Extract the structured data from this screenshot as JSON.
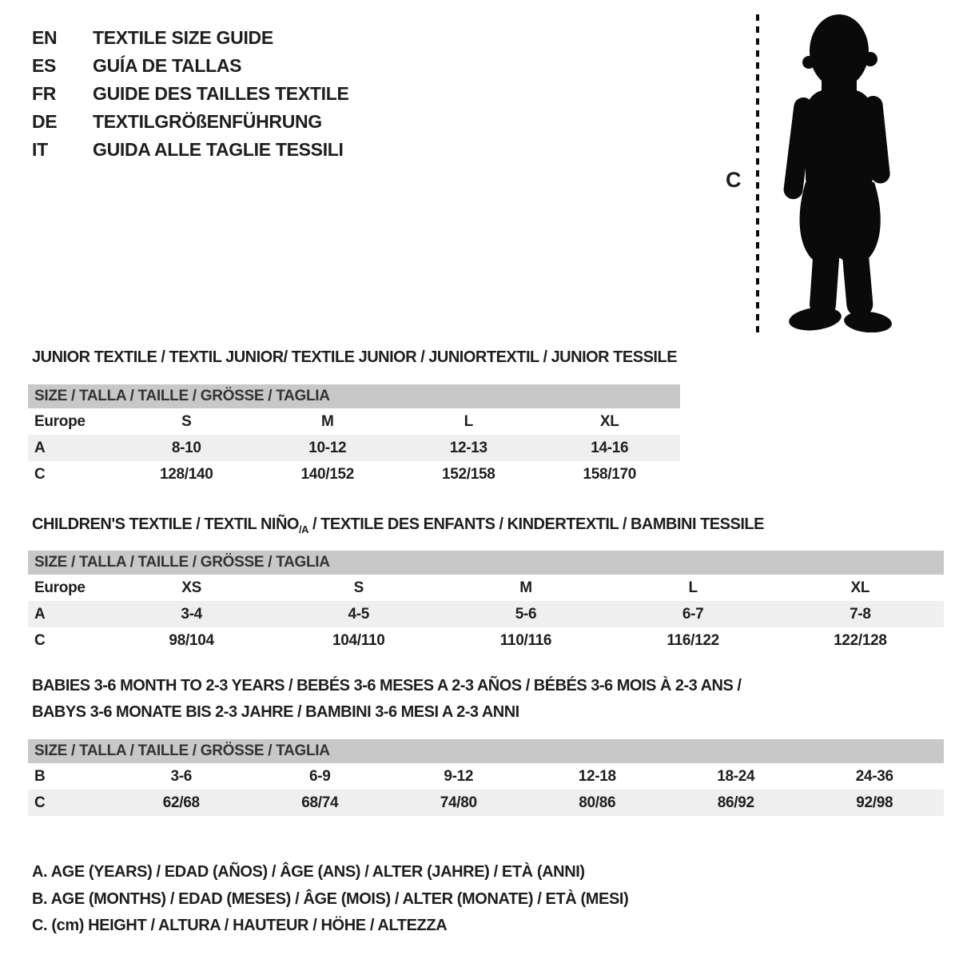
{
  "colors": {
    "background": "#ffffff",
    "text": "#1e1e1e",
    "table_header_bg": "#c8c8c8",
    "table_header_text": "#333333",
    "row_shaded_bg": "#efefef",
    "silhouette": "#0a0a0a"
  },
  "language_header": {
    "items": [
      {
        "code": "EN",
        "title": "TEXTILE SIZE GUIDE"
      },
      {
        "code": "ES",
        "title": "GUÍA DE TALLAS"
      },
      {
        "code": "FR",
        "title": "GUIDE DES TAILLES TEXTILE"
      },
      {
        "code": "DE",
        "title": "TEXTILGRÖßENFÜHRUNG"
      },
      {
        "code": "IT",
        "title": "GUIDA ALLE TAGLIE TESSILI"
      }
    ]
  },
  "figure": {
    "icon": "toddler-silhouette",
    "measure_label": "C"
  },
  "junior": {
    "title": "JUNIOR TEXTILE / TEXTIL JUNIOR/ TEXTILE JUNIOR / JUNIORTEXTIL / JUNIOR TESSILE",
    "table": {
      "header": "SIZE / TALLA / TAILLE / GRÖSSE / TAGLIA",
      "rows": [
        {
          "label": "Europe",
          "cells": [
            "S",
            "M",
            "L",
            "XL"
          ],
          "shaded": false
        },
        {
          "label": "A",
          "cells": [
            "8-10",
            "10-12",
            "12-13",
            "14-16"
          ],
          "shaded": true
        },
        {
          "label": "C",
          "cells": [
            "128/140",
            "140/152",
            "152/158",
            "158/170"
          ],
          "shaded": false
        }
      ]
    }
  },
  "children": {
    "title_pre": "CHILDREN'S TEXTILE / TEXTIL NIÑO",
    "title_sub": "/A",
    "title_post": " / TEXTILE DES ENFANTS / KINDERTEXTIL / BAMBINI TESSILE",
    "table": {
      "header": "SIZE / TALLA / TAILLE / GRÖSSE / TAGLIA",
      "rows": [
        {
          "label": "Europe",
          "cells": [
            "XS",
            "S",
            "M",
            "L",
            "XL"
          ],
          "shaded": false
        },
        {
          "label": "A",
          "cells": [
            "3-4",
            "4-5",
            "5-6",
            "6-7",
            "7-8"
          ],
          "shaded": true
        },
        {
          "label": "C",
          "cells": [
            "98/104",
            "104/110",
            "110/116",
            "116/122",
            "122/128"
          ],
          "shaded": false
        }
      ]
    }
  },
  "babies": {
    "title_line1": "BABIES 3-6 MONTH TO 2-3 YEARS / BEBÉS 3-6 MESES A 2-3 AÑOS / BÉBÉS 3-6 MOIS À 2-3 ANS /",
    "title_line2": "BABYS 3-6 MONATE BIS 2-3 JAHRE / BAMBINI 3-6 MESI A 2-3 ANNI",
    "table": {
      "header": "SIZE / TALLA / TAILLE / GRÖSSE / TAGLIA",
      "rows": [
        {
          "label": "B",
          "cells": [
            "3-6",
            "6-9",
            "9-12",
            "12-18",
            "18-24",
            "24-36"
          ],
          "shaded": false
        },
        {
          "label": "C",
          "cells": [
            "62/68",
            "68/74",
            "74/80",
            "80/86",
            "86/92",
            "92/98"
          ],
          "shaded": true
        }
      ]
    }
  },
  "legend": {
    "line_a": "A. AGE (YEARS) / EDAD (AÑOS) / ÂGE (ANS) / ALTER (JAHRE) / ETÀ (ANNI)",
    "line_b": "B. AGE (MONTHS) / EDAD (MESES) / ÂGE (MOIS) / ALTER (MONATE) / ETÀ (MESI)",
    "line_c": "C. (cm) HEIGHT / ALTURA / HAUTEUR / HÖHE / ALTEZZA"
  }
}
